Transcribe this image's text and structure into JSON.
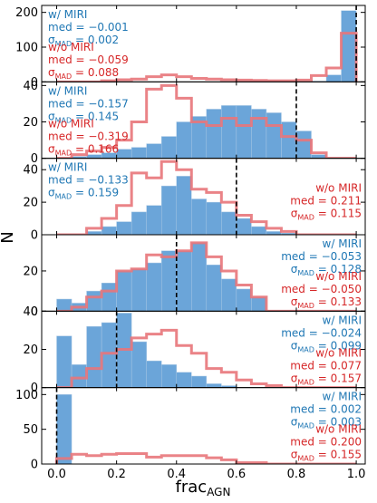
{
  "chart_data": [
    {
      "type": "bar",
      "panel": 1,
      "ylim": [
        0,
        220
      ],
      "yticks": [
        0,
        100,
        200
      ],
      "true_frac_agn": 1.0,
      "series": [
        {
          "name": "w/ MIRI",
          "color": "#1f77b4",
          "values": [
            0,
            0,
            0,
            0,
            0,
            0,
            0,
            0,
            0,
            0,
            0,
            0,
            0,
            0,
            0,
            0,
            0,
            2,
            20,
            205
          ]
        },
        {
          "name": "w/o MIRI",
          "color": "#d62728",
          "values": [
            0,
            0,
            0,
            3,
            6,
            8,
            15,
            20,
            15,
            10,
            8,
            6,
            5,
            4,
            3,
            3,
            5,
            18,
            40,
            140
          ]
        }
      ],
      "stats": [
        {
          "series": "w/ MIRI",
          "med": "med = −0.001",
          "sigma": "0.002",
          "color": "#1f77b4"
        },
        {
          "series": "w/o MIRI",
          "med": "med = −0.059",
          "sigma": "0.088",
          "color": "#d62728"
        }
      ],
      "ann_side": "left"
    },
    {
      "type": "bar",
      "panel": 2,
      "ylim": [
        0,
        42
      ],
      "yticks": [
        0,
        20,
        40
      ],
      "true_frac_agn": 0.8,
      "series": [
        {
          "name": "w/ MIRI",
          "color": "#1f77b4",
          "values": [
            0,
            1,
            2,
            3,
            5,
            6,
            8,
            12,
            20,
            23,
            27,
            29,
            29,
            27,
            25,
            20,
            15,
            2,
            0,
            0
          ]
        },
        {
          "name": "w/o MIRI",
          "color": "#d62728",
          "values": [
            0,
            2,
            4,
            6,
            10,
            20,
            38,
            40,
            33,
            20,
            18,
            22,
            18,
            22,
            18,
            12,
            10,
            3,
            0,
            0
          ]
        }
      ],
      "stats": [
        {
          "series": "w/ MIRI",
          "med": "med = −0.157",
          "sigma": "0.145",
          "color": "#1f77b4"
        },
        {
          "series": "w/o MIRI",
          "med": "med = −0.319",
          "sigma": "0.166",
          "color": "#d62728"
        }
      ],
      "ann_side": "left"
    },
    {
      "type": "bar",
      "panel": 3,
      "ylim": [
        0,
        47
      ],
      "yticks": [
        0,
        20,
        40
      ],
      "true_frac_agn": 0.6,
      "series": [
        {
          "name": "w/ MIRI",
          "color": "#1f77b4",
          "values": [
            0,
            0,
            2,
            5,
            8,
            14,
            18,
            30,
            36,
            22,
            20,
            14,
            10,
            5,
            2,
            1,
            0,
            0,
            0,
            0
          ]
        },
        {
          "name": "w/o MIRI",
          "color": "#d62728",
          "values": [
            0,
            0,
            4,
            10,
            18,
            38,
            35,
            45,
            40,
            28,
            26,
            20,
            12,
            8,
            4,
            2,
            0,
            0,
            0,
            0
          ]
        }
      ],
      "stats": [
        {
          "series": "w/ MIRI",
          "med": "med = −0.133",
          "sigma": "0.159",
          "color": "#1f77b4"
        },
        {
          "series": "w/o MIRI",
          "med": "med = 0.211",
          "sigma": "0.115",
          "color": "#d62728"
        }
      ],
      "ann_side": "split"
    },
    {
      "type": "bar",
      "panel": 4,
      "ylim": [
        0,
        38
      ],
      "yticks": [
        0,
        20
      ],
      "true_frac_agn": 0.4,
      "series": [
        {
          "name": "w/ MIRI",
          "color": "#1f77b4",
          "values": [
            6,
            4,
            10,
            14,
            20,
            21,
            24,
            30,
            30,
            34,
            23,
            16,
            11,
            7,
            0,
            0,
            0,
            0,
            0,
            0
          ]
        },
        {
          "name": "w/o MIRI",
          "color": "#d62728",
          "values": [
            0,
            2,
            7,
            10,
            20,
            21,
            28,
            27,
            30,
            34,
            27,
            20,
            13,
            7,
            0,
            0,
            0,
            0,
            0,
            0
          ]
        }
      ],
      "stats": [
        {
          "series": "w/ MIRI",
          "med": "med = −0.053",
          "sigma": "0.128",
          "color": "#1f77b4"
        },
        {
          "series": "w/o MIRI",
          "med": "med = −0.050",
          "sigma": "0.133",
          "color": "#d62728"
        }
      ],
      "ann_side": "right"
    },
    {
      "type": "bar",
      "panel": 5,
      "ylim": [
        0,
        40
      ],
      "yticks": [
        0,
        20,
        40
      ],
      "true_frac_agn": 0.2,
      "series": [
        {
          "name": "w/ MIRI",
          "color": "#1f77b4",
          "values": [
            27,
            12,
            32,
            34,
            39,
            24,
            14,
            12,
            8,
            6,
            2,
            1,
            0,
            0,
            0,
            0,
            0,
            0,
            0,
            0
          ]
        },
        {
          "name": "w/o MIRI",
          "color": "#d62728",
          "values": [
            0,
            5,
            10,
            18,
            20,
            26,
            28,
            30,
            22,
            18,
            10,
            8,
            4,
            2,
            1,
            0,
            0,
            0,
            0,
            0
          ]
        }
      ],
      "stats": [
        {
          "series": "w/ MIRI",
          "med": "med = −0.024",
          "sigma": "0.099",
          "color": "#1f77b4"
        },
        {
          "series": "w/o MIRI",
          "med": "med = 0.077",
          "sigma": "0.157",
          "color": "#d62728"
        }
      ],
      "ann_side": "right"
    },
    {
      "type": "bar",
      "panel": 6,
      "ylim": [
        0,
        110
      ],
      "yticks": [
        0,
        50,
        100
      ],
      "true_frac_agn": 0.0,
      "series": [
        {
          "name": "w/ MIRI",
          "color": "#1f77b4",
          "values": [
            100,
            0,
            0,
            0,
            0,
            0,
            0,
            0,
            0,
            0,
            0,
            0,
            0,
            0,
            0,
            0,
            0,
            0,
            0,
            0
          ]
        },
        {
          "name": "w/o MIRI",
          "color": "#d62728",
          "values": [
            8,
            14,
            12,
            14,
            15,
            15,
            10,
            12,
            12,
            12,
            9,
            6,
            2,
            2,
            0,
            0,
            0,
            0,
            0,
            0
          ]
        }
      ],
      "stats": [
        {
          "series": "w/ MIRI",
          "med": "med = 0.002",
          "sigma": "0.003",
          "color": "#1f77b4"
        },
        {
          "series": "w/o MIRI",
          "med": "med = 0.200",
          "sigma": "0.155",
          "color": "#d62728"
        }
      ],
      "ann_side": "right"
    }
  ],
  "axes": {
    "xlabel_main": "frac",
    "xlabel_sub": "AGN",
    "ylabel": "N",
    "xlim": [
      -0.05,
      1.03
    ],
    "xticks": [
      "0.0",
      "0.2",
      "0.4",
      "0.6",
      "0.8",
      "1.0"
    ],
    "xtick_values": [
      0.0,
      0.2,
      0.4,
      0.6,
      0.8,
      1.0
    ],
    "bin_start": 0.0,
    "bin_width": 0.05,
    "sigma_symbol": "σ",
    "sigma_sub": "MAD"
  },
  "colors": {
    "miri": "#1f77b4",
    "miri_fill": "#5b9bd5",
    "nomiri": "#d62728",
    "nomiri_line": "#e8757a"
  }
}
